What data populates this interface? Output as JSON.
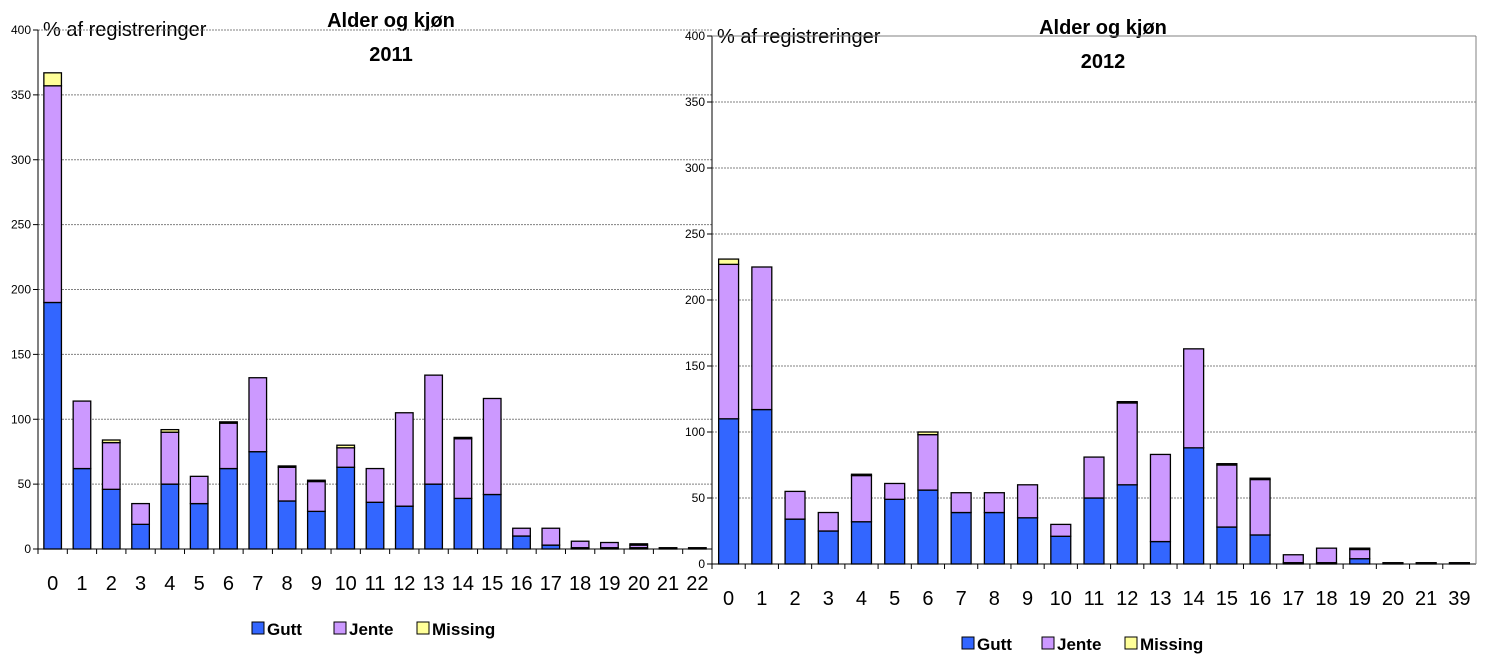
{
  "colors": {
    "Gutt": "#3366ff",
    "Jente": "#cc99ff",
    "Missing": "#ffff99",
    "grid": "#808080"
  },
  "chart_data": [
    {
      "type": "bar",
      "stacked": true,
      "title": "Alder og kjøn",
      "subtitle": "2011",
      "ylabel": "% af registreringer",
      "ylim": [
        0,
        400
      ],
      "yticks": [
        0,
        50,
        100,
        150,
        200,
        250,
        300,
        350,
        400
      ],
      "categories": [
        "0",
        "1",
        "2",
        "3",
        "4",
        "5",
        "6",
        "7",
        "8",
        "9",
        "10",
        "11",
        "12",
        "13",
        "14",
        "15",
        "16",
        "17",
        "18",
        "19",
        "20",
        "21",
        "22"
      ],
      "series": [
        {
          "name": "Gutt",
          "values": [
            190,
            62,
            46,
            19,
            50,
            35,
            62,
            75,
            37,
            29,
            63,
            36,
            33,
            50,
            39,
            42,
            10,
            3,
            1,
            1,
            1,
            0,
            0
          ]
        },
        {
          "name": "Jente",
          "values": [
            167,
            52,
            36,
            16,
            40,
            21,
            35,
            57,
            26,
            23,
            15,
            26,
            72,
            84,
            46,
            74,
            6,
            13,
            5,
            4,
            2,
            1,
            1
          ]
        },
        {
          "name": "Missing",
          "values": [
            10,
            0,
            2,
            0,
            2,
            0,
            1,
            0,
            1,
            1,
            2,
            0,
            0,
            0,
            1,
            0,
            0,
            0,
            0,
            0,
            1,
            0,
            0
          ]
        }
      ],
      "grid": true,
      "legend": "bottom"
    },
    {
      "type": "bar",
      "stacked": true,
      "title": "Alder og kjøn",
      "subtitle": "2012",
      "ylabel": "% af registreringer",
      "ylim": [
        0,
        400
      ],
      "yticks": [
        0,
        50,
        100,
        150,
        200,
        250,
        300,
        350,
        400
      ],
      "categories": [
        "0",
        "1",
        "2",
        "3",
        "4",
        "5",
        "6",
        "7",
        "8",
        "9",
        "10",
        "11",
        "12",
        "13",
        "14",
        "15",
        "16",
        "17",
        "18",
        "19",
        "20",
        "21",
        "39"
      ],
      "series": [
        {
          "name": "Gutt",
          "values": [
            110,
            117,
            34,
            25,
            32,
            49,
            56,
            39,
            39,
            35,
            21,
            50,
            60,
            17,
            88,
            28,
            22,
            1,
            1,
            4,
            0,
            0,
            0
          ]
        },
        {
          "name": "Jente",
          "values": [
            117,
            108,
            21,
            14,
            35,
            12,
            42,
            15,
            15,
            25,
            9,
            31,
            62,
            66,
            75,
            47,
            42,
            6,
            11,
            7,
            1,
            1,
            1
          ]
        },
        {
          "name": "Missing",
          "values": [
            4,
            0,
            0,
            0,
            1,
            0,
            2,
            0,
            0,
            0,
            0,
            0,
            1,
            0,
            0,
            1,
            1,
            0,
            0,
            1,
            0,
            0,
            0
          ]
        }
      ],
      "grid": true,
      "legend": "bottom"
    }
  ]
}
